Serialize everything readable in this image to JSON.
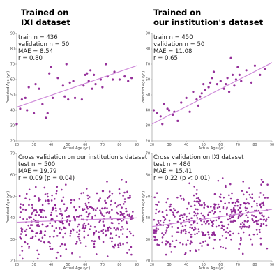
{
  "headings": {
    "left": [
      "Trained on",
      "IXI dataset"
    ],
    "right": [
      "Trained on",
      "our institution's dataset"
    ]
  },
  "colors": {
    "points": "#8a1a8f",
    "fit_line": "#cf8ad9",
    "axis": "#888888"
  },
  "chart_data": [
    {
      "type": "scatter",
      "xlabel": "Actual Age (yr.)",
      "ylabel": "Predicted Age (yr.)",
      "xlim": [
        20,
        90
      ],
      "ylim": [
        20,
        90
      ],
      "xticks": [
        20,
        30,
        40,
        50,
        60,
        70,
        80,
        90
      ],
      "yticks": [
        20,
        30,
        40,
        50,
        60,
        70,
        80,
        90
      ],
      "stats": [
        "train n = 436",
        "validation n = 50",
        "MAE = 8.54",
        "r = 0.80"
      ],
      "fit_line": [
        [
          20,
          42
        ],
        [
          90,
          69
        ]
      ],
      "points": [
        [
          20,
          31
        ],
        [
          22,
          41
        ],
        [
          23,
          47
        ],
        [
          25,
          48
        ],
        [
          26,
          40
        ],
        [
          27,
          55
        ],
        [
          30,
          38
        ],
        [
          31,
          57
        ],
        [
          33,
          54
        ],
        [
          35,
          44
        ],
        [
          37,
          35
        ],
        [
          38,
          38
        ],
        [
          39,
          64
        ],
        [
          40,
          68
        ],
        [
          41,
          48
        ],
        [
          44,
          61
        ],
        [
          47,
          56
        ],
        [
          48,
          49
        ],
        [
          49,
          70
        ],
        [
          50,
          47
        ],
        [
          51,
          58
        ],
        [
          53,
          59
        ],
        [
          54,
          48
        ],
        [
          58,
          47
        ],
        [
          59,
          56
        ],
        [
          60,
          63
        ],
        [
          61,
          64
        ],
        [
          62,
          59
        ],
        [
          63,
          66
        ],
        [
          64,
          54
        ],
        [
          65,
          63
        ],
        [
          66,
          57
        ],
        [
          69,
          60
        ],
        [
          70,
          55
        ],
        [
          72,
          70
        ],
        [
          73,
          62
        ],
        [
          76,
          60
        ],
        [
          77,
          65
        ],
        [
          80,
          60
        ],
        [
          83,
          62
        ],
        [
          85,
          59
        ],
        [
          87,
          61
        ]
      ]
    },
    {
      "type": "scatter",
      "xlabel": "Actual Age (yr.)",
      "ylabel": "Predicted Age (yr.)",
      "xlim": [
        20,
        90
      ],
      "ylim": [
        20,
        90
      ],
      "xticks": [
        20,
        30,
        40,
        50,
        60,
        70,
        80,
        90
      ],
      "yticks": [
        20,
        30,
        40,
        50,
        60,
        70,
        80,
        90
      ],
      "stats": [
        "train n = 450",
        "validation n = 50",
        "MAE = 11.08",
        "r = 0.65"
      ],
      "fit_line": [
        [
          20,
          31
        ],
        [
          90,
          71
        ]
      ],
      "points": [
        [
          21,
          40
        ],
        [
          23,
          38
        ],
        [
          25,
          36
        ],
        [
          26,
          31
        ],
        [
          27,
          44
        ],
        [
          29,
          41
        ],
        [
          30,
          40
        ],
        [
          32,
          37
        ],
        [
          33,
          39
        ],
        [
          35,
          33
        ],
        [
          37,
          45
        ],
        [
          40,
          48
        ],
        [
          42,
          39
        ],
        [
          44,
          52
        ],
        [
          46,
          47
        ],
        [
          47,
          43
        ],
        [
          48,
          49
        ],
        [
          49,
          51
        ],
        [
          50,
          57
        ],
        [
          51,
          53
        ],
        [
          53,
          55
        ],
        [
          54,
          58
        ],
        [
          55,
          61
        ],
        [
          56,
          65
        ],
        [
          58,
          57
        ],
        [
          60,
          59
        ],
        [
          62,
          54
        ],
        [
          63,
          57
        ],
        [
          64,
          61
        ],
        [
          65,
          52
        ],
        [
          66,
          74
        ],
        [
          67,
          63
        ],
        [
          68,
          56
        ],
        [
          69,
          60
        ],
        [
          70,
          68
        ],
        [
          71,
          63
        ],
        [
          72,
          59
        ],
        [
          75,
          66
        ],
        [
          78,
          58
        ],
        [
          80,
          69
        ],
        [
          83,
          63
        ],
        [
          86,
          67
        ]
      ]
    },
    {
      "type": "scatter",
      "xlabel": "Actual Age (yr.)",
      "ylabel": "Predicted Age (yr.)",
      "xlim": [
        20,
        90
      ],
      "ylim": [
        20,
        70
      ],
      "xticks": [
        20,
        30,
        40,
        50,
        60,
        70,
        80,
        90
      ],
      "yticks": [
        20,
        30,
        40,
        50,
        60,
        70
      ],
      "stats": [
        "Cross validation on our institution's dataset",
        "test n = 500",
        "MAE = 19.79",
        "r = 0.09 (p = 0.04)"
      ],
      "fit_line": [
        [
          20,
          38
        ],
        [
          90,
          40
        ]
      ]
    },
    {
      "type": "scatter",
      "xlabel": "Actual Age (yr.)",
      "ylabel": "Predicted Age (yr.)",
      "xlim": [
        20,
        90
      ],
      "ylim": [
        20,
        70
      ],
      "xticks": [
        20,
        30,
        40,
        50,
        60,
        70,
        80,
        90
      ],
      "yticks": [
        20,
        30,
        40,
        50,
        60,
        70
      ],
      "stats": [
        "Cross validation on IXI dataset",
        "test n = 486",
        "MAE = 15.41",
        "r = 0.22 (p < 0.01)"
      ],
      "fit_line": [
        [
          20,
          36
        ],
        [
          90,
          44
        ]
      ]
    }
  ]
}
